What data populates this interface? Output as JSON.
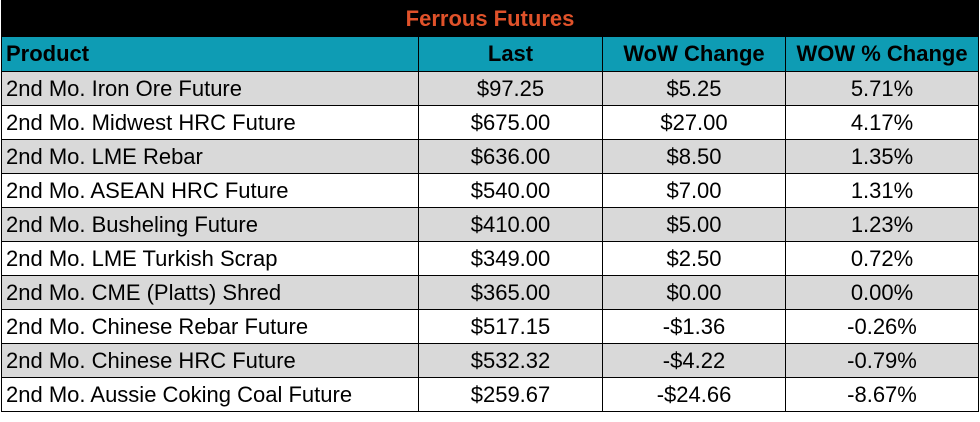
{
  "title": "Ferrous Futures",
  "columns": [
    "Product",
    "Last",
    "WoW Change",
    "WOW % Change"
  ],
  "rows": [
    {
      "product": "2nd Mo. Iron Ore Future",
      "last": "$97.25",
      "wow": "$5.25",
      "pct": "5.71%"
    },
    {
      "product": "2nd Mo. Midwest HRC Future",
      "last": "$675.00",
      "wow": "$27.00",
      "pct": "4.17%"
    },
    {
      "product": "2nd Mo. LME Rebar",
      "last": "$636.00",
      "wow": "$8.50",
      "pct": "1.35%"
    },
    {
      "product": "2nd Mo. ASEAN HRC Future",
      "last": "$540.00",
      "wow": "$7.00",
      "pct": "1.31%"
    },
    {
      "product": "2nd Mo. Busheling Future",
      "last": "$410.00",
      "wow": "$5.00",
      "pct": "1.23%"
    },
    {
      "product": "2nd Mo. LME Turkish Scrap",
      "last": "$349.00",
      "wow": "$2.50",
      "pct": "0.72%"
    },
    {
      "product": "2nd Mo. CME (Platts) Shred",
      "last": "$365.00",
      "wow": "$0.00",
      "pct": "0.00%"
    },
    {
      "product": "2nd Mo. Chinese Rebar Future",
      "last": "$517.15",
      "wow": "-$1.36",
      "pct": "-0.26%"
    },
    {
      "product": "2nd Mo. Chinese HRC Future",
      "last": "$532.32",
      "wow": "-$4.22",
      "pct": "-0.79%"
    },
    {
      "product": "2nd Mo. Aussie Coking Coal Future",
      "last": "$259.67",
      "wow": "-$24.66",
      "pct": "-8.67%"
    }
  ],
  "colors": {
    "title_bg": "#000000",
    "title_text": "#e0522a",
    "header_bg": "#0e9cb4",
    "stripe": "#d9d9d9"
  }
}
